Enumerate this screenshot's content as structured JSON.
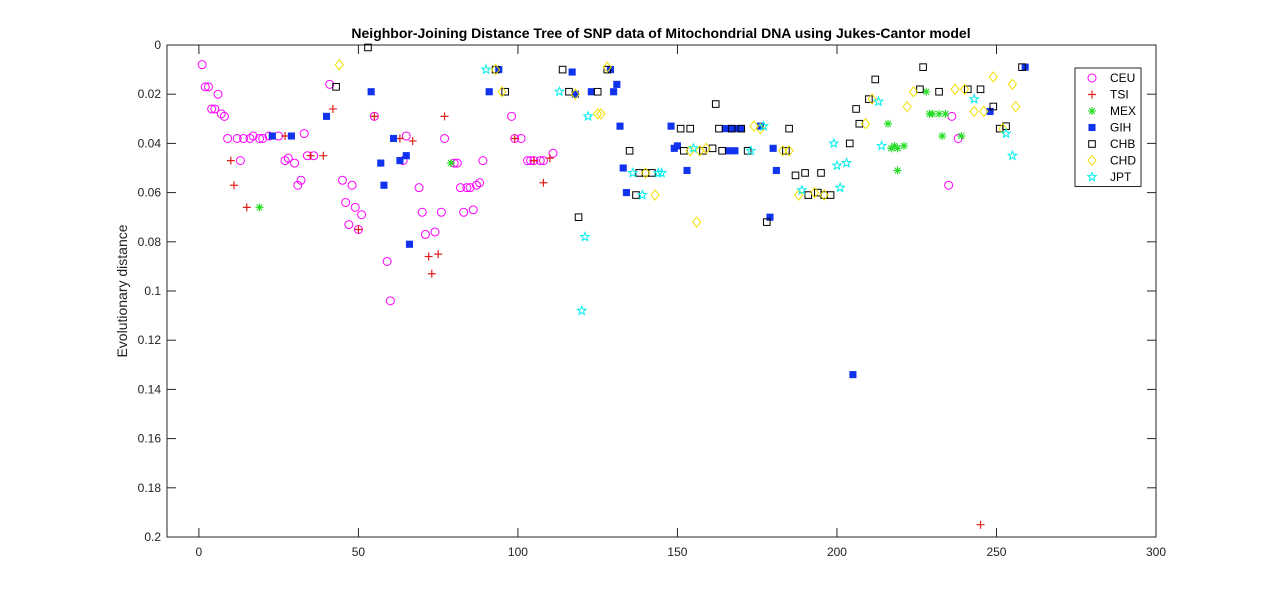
{
  "chart_data": {
    "type": "scatter",
    "title": "Neighbor-Joining Distance Tree of SNP data of Mitochondrial DNA using Jukes-Cantor model",
    "xlabel": "",
    "ylabel": "Evolutionary distance",
    "xlim": [
      -10,
      300
    ],
    "ylim": [
      0,
      0.2
    ],
    "y_reversed": true,
    "xticks": [
      0,
      50,
      100,
      150,
      200,
      250,
      300
    ],
    "yticks": [
      0,
      0.02,
      0.04,
      0.06,
      0.08,
      0.1,
      0.12,
      0.14,
      0.16,
      0.18,
      0.2
    ],
    "ytick_labels": [
      "0",
      "0.02",
      "0.04",
      "0.06",
      "0.08",
      "0.1",
      "0.12",
      "0.14",
      "0.16",
      "0.18",
      "0.2"
    ],
    "grid": false,
    "legend_position": "top-right",
    "series": [
      {
        "name": "CEU",
        "marker": "circle",
        "color": "#ff00ff",
        "points": [
          [
            1,
            0.008
          ],
          [
            2,
            0.017
          ],
          [
            3,
            0.017
          ],
          [
            4,
            0.026
          ],
          [
            5,
            0.026
          ],
          [
            6,
            0.02
          ],
          [
            7,
            0.028
          ],
          [
            8,
            0.029
          ],
          [
            9,
            0.038
          ],
          [
            12,
            0.038
          ],
          [
            13,
            0.047
          ],
          [
            14,
            0.038
          ],
          [
            16,
            0.038
          ],
          [
            17,
            0.037
          ],
          [
            19,
            0.038
          ],
          [
            20,
            0.038
          ],
          [
            22,
            0.037
          ],
          [
            25,
            0.037
          ],
          [
            27,
            0.047
          ],
          [
            28,
            0.046
          ],
          [
            30,
            0.048
          ],
          [
            31,
            0.057
          ],
          [
            32,
            0.055
          ],
          [
            33,
            0.036
          ],
          [
            34,
            0.045
          ],
          [
            36,
            0.045
          ],
          [
            41,
            0.016
          ],
          [
            45,
            0.055
          ],
          [
            46,
            0.064
          ],
          [
            47,
            0.073
          ],
          [
            48,
            0.057
          ],
          [
            49,
            0.066
          ],
          [
            50,
            0.075
          ],
          [
            51,
            0.069
          ],
          [
            55,
            0.029
          ],
          [
            59,
            0.088
          ],
          [
            60,
            0.104
          ],
          [
            64,
            0.047
          ],
          [
            65,
            0.037
          ],
          [
            69,
            0.058
          ],
          [
            70,
            0.068
          ],
          [
            71,
            0.077
          ],
          [
            74,
            0.076
          ],
          [
            76,
            0.068
          ],
          [
            77,
            0.038
          ],
          [
            80,
            0.048
          ],
          [
            81,
            0.048
          ],
          [
            82,
            0.058
          ],
          [
            83,
            0.068
          ],
          [
            84,
            0.058
          ],
          [
            85,
            0.058
          ],
          [
            86,
            0.067
          ],
          [
            87,
            0.057
          ],
          [
            88,
            0.056
          ],
          [
            89,
            0.047
          ],
          [
            98,
            0.029
          ],
          [
            99,
            0.038
          ],
          [
            101,
            0.038
          ],
          [
            103,
            0.047
          ],
          [
            104,
            0.047
          ],
          [
            105,
            0.047
          ],
          [
            107,
            0.047
          ],
          [
            108,
            0.047
          ],
          [
            111,
            0.044
          ],
          [
            235,
            0.057
          ],
          [
            236,
            0.029
          ],
          [
            238,
            0.038
          ]
        ]
      },
      {
        "name": "TSI",
        "marker": "plus",
        "color": "#e0201c",
        "points": [
          [
            10,
            0.047
          ],
          [
            11,
            0.057
          ],
          [
            15,
            0.066
          ],
          [
            27,
            0.037
          ],
          [
            35,
            0.045
          ],
          [
            39,
            0.045
          ],
          [
            42,
            0.026
          ],
          [
            50,
            0.075
          ],
          [
            55,
            0.029
          ],
          [
            63,
            0.038
          ],
          [
            67,
            0.039
          ],
          [
            72,
            0.086
          ],
          [
            73,
            0.093
          ],
          [
            75,
            0.085
          ],
          [
            77,
            0.029
          ],
          [
            99,
            0.038
          ],
          [
            105,
            0.047
          ],
          [
            108,
            0.056
          ],
          [
            110,
            0.046
          ],
          [
            245,
            0.195
          ]
        ]
      },
      {
        "name": "MEX",
        "marker": "asterisk",
        "color": "#22dd22",
        "points": [
          [
            19,
            0.066
          ],
          [
            79,
            0.048
          ],
          [
            216,
            0.032
          ],
          [
            217,
            0.042
          ],
          [
            218,
            0.041
          ],
          [
            219,
            0.042
          ],
          [
            219,
            0.051
          ],
          [
            221,
            0.041
          ],
          [
            228,
            0.019
          ],
          [
            229,
            0.028
          ],
          [
            230,
            0.028
          ],
          [
            232,
            0.028
          ],
          [
            233,
            0.037
          ],
          [
            234,
            0.028
          ],
          [
            239,
            0.037
          ]
        ]
      },
      {
        "name": "GIH",
        "marker": "square-filled",
        "color": "#1133ee",
        "points": [
          [
            23,
            0.037
          ],
          [
            29,
            0.037
          ],
          [
            40,
            0.029
          ],
          [
            54,
            0.019
          ],
          [
            57,
            0.048
          ],
          [
            58,
            0.057
          ],
          [
            61,
            0.038
          ],
          [
            63,
            0.047
          ],
          [
            65,
            0.045
          ],
          [
            66,
            0.081
          ],
          [
            91,
            0.019
          ],
          [
            94,
            0.01
          ],
          [
            117,
            0.011
          ],
          [
            118,
            0.02
          ],
          [
            123,
            0.019
          ],
          [
            129,
            0.01
          ],
          [
            130,
            0.019
          ],
          [
            131,
            0.016
          ],
          [
            132,
            0.033
          ],
          [
            133,
            0.05
          ],
          [
            134,
            0.06
          ],
          [
            148,
            0.033
          ],
          [
            149,
            0.042
          ],
          [
            150,
            0.041
          ],
          [
            153,
            0.051
          ],
          [
            165,
            0.034
          ],
          [
            166,
            0.043
          ],
          [
            167,
            0.034
          ],
          [
            168,
            0.043
          ],
          [
            169,
            0.034
          ],
          [
            170,
            0.034
          ],
          [
            176,
            0.033
          ],
          [
            179,
            0.07
          ],
          [
            180,
            0.042
          ],
          [
            181,
            0.051
          ],
          [
            205,
            0.134
          ],
          [
            248,
            0.027
          ],
          [
            259,
            0.009
          ]
        ]
      },
      {
        "name": "CHB",
        "marker": "square",
        "color": "#000000",
        "points": [
          [
            43,
            0.017
          ],
          [
            53,
            0.001
          ],
          [
            93,
            0.01
          ],
          [
            96,
            0.019
          ],
          [
            114,
            0.01
          ],
          [
            116,
            0.019
          ],
          [
            119,
            0.07
          ],
          [
            125,
            0.019
          ],
          [
            128,
            0.01
          ],
          [
            135,
            0.043
          ],
          [
            137,
            0.061
          ],
          [
            138,
            0.052
          ],
          [
            140,
            0.052
          ],
          [
            142,
            0.052
          ],
          [
            151,
            0.034
          ],
          [
            152,
            0.043
          ],
          [
            154,
            0.034
          ],
          [
            158,
            0.043
          ],
          [
            161,
            0.042
          ],
          [
            162,
            0.024
          ],
          [
            163,
            0.034
          ],
          [
            164,
            0.043
          ],
          [
            167,
            0.034
          ],
          [
            170,
            0.034
          ],
          [
            172,
            0.043
          ],
          [
            178,
            0.072
          ],
          [
            184,
            0.043
          ],
          [
            185,
            0.034
          ],
          [
            187,
            0.053
          ],
          [
            190,
            0.052
          ],
          [
            191,
            0.061
          ],
          [
            194,
            0.06
          ],
          [
            195,
            0.052
          ],
          [
            196,
            0.061
          ],
          [
            198,
            0.061
          ],
          [
            204,
            0.04
          ],
          [
            206,
            0.026
          ],
          [
            207,
            0.032
          ],
          [
            210,
            0.022
          ],
          [
            212,
            0.014
          ],
          [
            226,
            0.018
          ],
          [
            227,
            0.009
          ],
          [
            232,
            0.019
          ],
          [
            241,
            0.018
          ],
          [
            245,
            0.018
          ],
          [
            249,
            0.025
          ],
          [
            251,
            0.034
          ],
          [
            253,
            0.033
          ],
          [
            258,
            0.009
          ]
        ]
      },
      {
        "name": "CHD",
        "marker": "diamond",
        "color": "#f0e000",
        "points": [
          [
            44,
            0.008
          ],
          [
            93,
            0.01
          ],
          [
            95,
            0.019
          ],
          [
            118,
            0.02
          ],
          [
            125,
            0.028
          ],
          [
            126,
            0.028
          ],
          [
            128,
            0.009
          ],
          [
            140,
            0.052
          ],
          [
            143,
            0.061
          ],
          [
            154,
            0.043
          ],
          [
            156,
            0.072
          ],
          [
            157,
            0.043
          ],
          [
            159,
            0.042
          ],
          [
            174,
            0.033
          ],
          [
            176,
            0.034
          ],
          [
            183,
            0.043
          ],
          [
            185,
            0.043
          ],
          [
            188,
            0.061
          ],
          [
            193,
            0.06
          ],
          [
            196,
            0.061
          ],
          [
            209,
            0.032
          ],
          [
            211,
            0.022
          ],
          [
            222,
            0.025
          ],
          [
            224,
            0.019
          ],
          [
            237,
            0.018
          ],
          [
            240,
            0.018
          ],
          [
            243,
            0.027
          ],
          [
            246,
            0.027
          ],
          [
            249,
            0.013
          ],
          [
            252,
            0.034
          ],
          [
            255,
            0.016
          ],
          [
            256,
            0.025
          ]
        ]
      },
      {
        "name": "JPT",
        "marker": "pentagram",
        "color": "#00eeee",
        "points": [
          [
            90,
            0.01
          ],
          [
            113,
            0.019
          ],
          [
            120,
            0.108
          ],
          [
            121,
            0.078
          ],
          [
            122,
            0.029
          ],
          [
            136,
            0.052
          ],
          [
            139,
            0.061
          ],
          [
            144,
            0.052
          ],
          [
            145,
            0.052
          ],
          [
            155,
            0.042
          ],
          [
            173,
            0.043
          ],
          [
            177,
            0.033
          ],
          [
            189,
            0.059
          ],
          [
            199,
            0.04
          ],
          [
            200,
            0.049
          ],
          [
            201,
            0.058
          ],
          [
            203,
            0.048
          ],
          [
            213,
            0.023
          ],
          [
            214,
            0.041
          ],
          [
            243,
            0.022
          ],
          [
            253,
            0.036
          ],
          [
            255,
            0.045
          ]
        ]
      }
    ]
  }
}
